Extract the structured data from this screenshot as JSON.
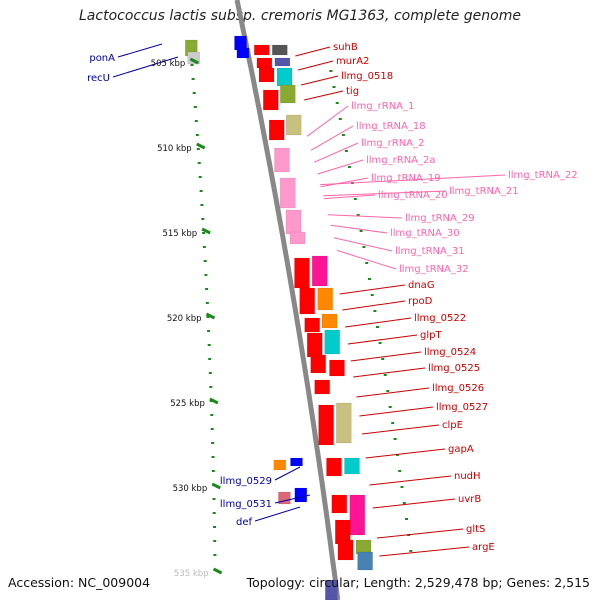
{
  "title": "Lactococcus lactis subsp. cremoris MG1363, complete genome",
  "accession": "Accession: NC_009004",
  "summary": "Topology: circular; Length: 2,529,478 bp; Genes: 2,515",
  "colors": {
    "backbone": "#888888",
    "red_gene": "#ff0000",
    "pink_rna": "#ff99cc",
    "blue_gene": "#0000ff",
    "red_label": "#cc0000",
    "pink_label": "#ff66aa",
    "blue_label": "#0000aa",
    "tick": "#1a8a1a"
  },
  "ticks": [
    "505 kbp",
    "510 kbp",
    "515 kbp",
    "520 kbp",
    "525 kbp",
    "530 kbp",
    "535 kbp"
  ],
  "left_labels": [
    "ponA",
    "recU",
    "llmg_0529",
    "llmg_0531",
    "def"
  ],
  "right_labels": [
    "suhB",
    "murA2",
    "llmg_0518",
    "tig",
    "llmg_rRNA_1",
    "llmg_tRNA_18",
    "llmg_rRNA_2",
    "llmg_rRNA_2a",
    "llmg_tRNA_19",
    "llmg_tRNA_20",
    "llmg_tRNA_21",
    "llmg_tRNA_22",
    "llmg_tRNA_29",
    "llmg_tRNA_30",
    "llmg_tRNA_31",
    "llmg_tRNA_32",
    "dnaG",
    "rpoD",
    "llmg_0522",
    "glpT",
    "llmg_0524",
    "llmg_0525",
    "llmg_0526",
    "llmg_0527",
    "clpE",
    "gapA",
    "nudH",
    "uvrB",
    "gltS",
    "argE"
  ]
}
